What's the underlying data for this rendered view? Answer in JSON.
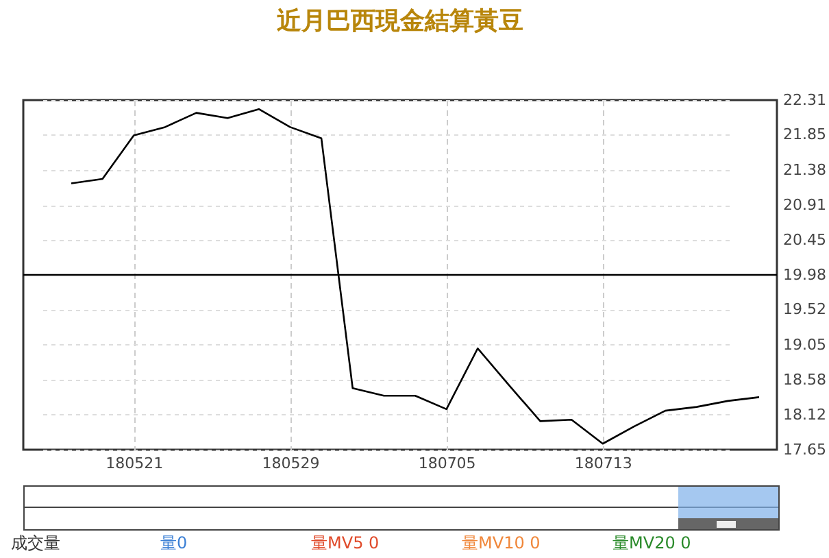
{
  "chart_data": {
    "type": "line",
    "title": "近月巴西現金結算黃豆",
    "categories": [
      null,
      null,
      "180521",
      null,
      null,
      null,
      null,
      "180529",
      null,
      null,
      null,
      null,
      "180705",
      null,
      null,
      null,
      null,
      "180713",
      null,
      null,
      null,
      null,
      null
    ],
    "series": [
      {
        "color": "#000000",
        "values": [
          21.2,
          21.26,
          21.84,
          21.95,
          22.14,
          22.07,
          22.19,
          21.95,
          21.8,
          18.47,
          18.37,
          18.37,
          18.19,
          19.0,
          18.51,
          18.03,
          18.05,
          17.73,
          17.96,
          18.17,
          18.22,
          18.3,
          18.35
        ]
      }
    ],
    "ylim": [
      17.65,
      22.31
    ],
    "yticks": [
      17.65,
      18.12,
      18.58,
      19.05,
      19.52,
      19.98,
      20.45,
      20.91,
      21.38,
      21.85,
      22.31
    ],
    "ref_lines": [
      {
        "axis": "y",
        "value": 19.98,
        "color": "#000000"
      }
    ],
    "annotations": [
      "成交量",
      "量0",
      "量MV5 0",
      "量MV10 0",
      "量MV20 0"
    ],
    "grid": true,
    "marker": "none",
    "line_style": "solid"
  }
}
